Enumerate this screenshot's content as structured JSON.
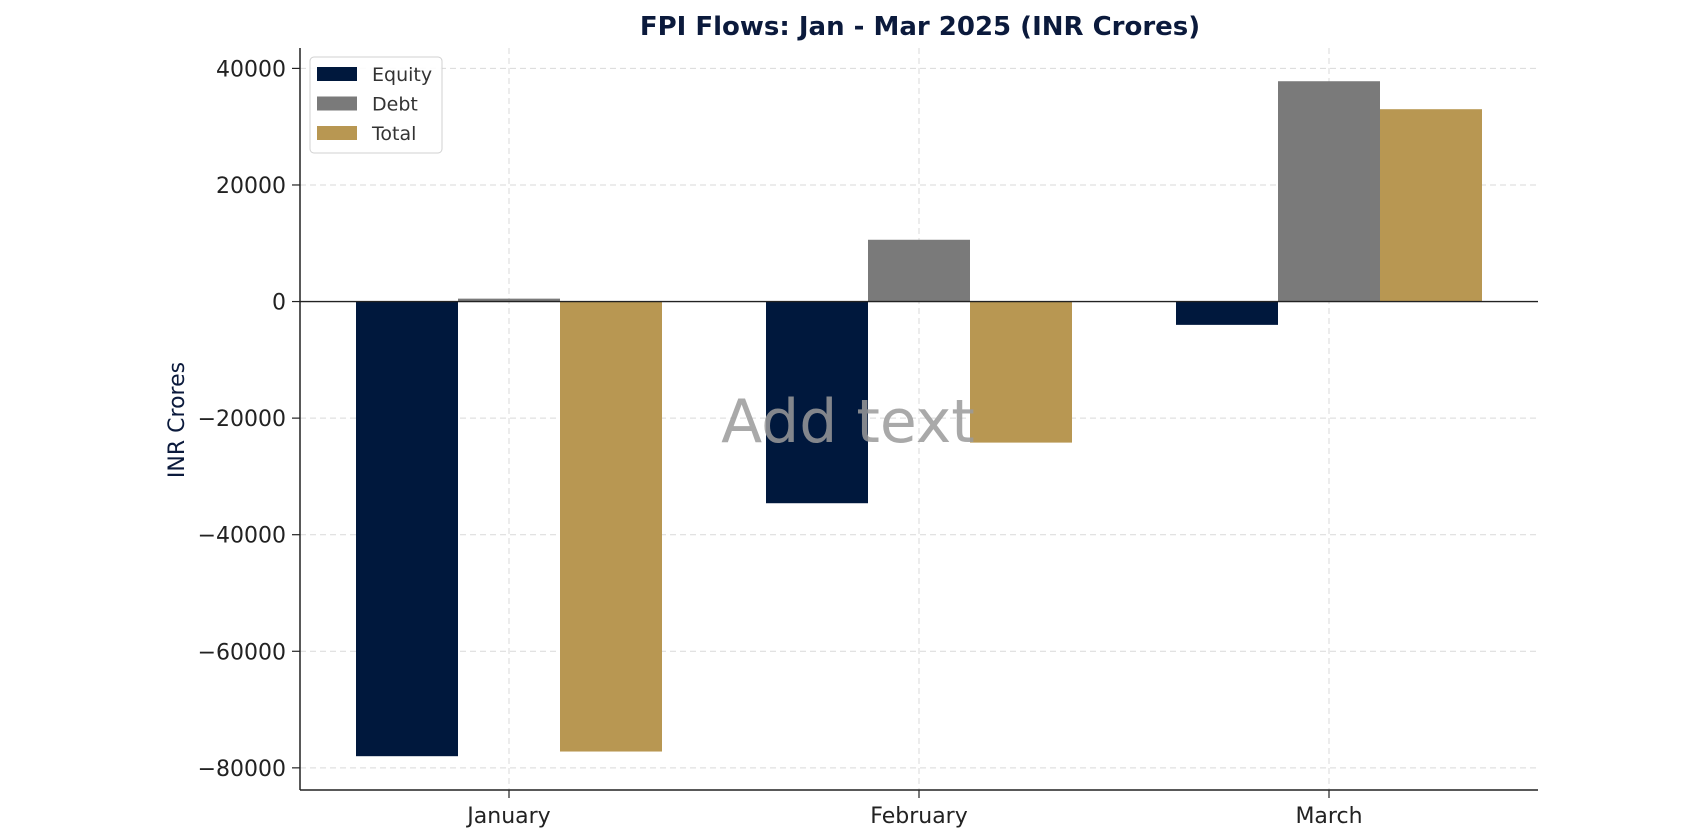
{
  "chart_data": {
    "type": "bar",
    "title": "FPI Flows: Jan - Mar 2025 (INR Crores)",
    "xlabel": "",
    "ylabel": "INR Crores",
    "categories": [
      "January",
      "February",
      "March"
    ],
    "series": [
      {
        "name": "Equity",
        "values": [
          -78000,
          -34600,
          -4000
        ],
        "color": "#00183d"
      },
      {
        "name": "Debt",
        "values": [
          500,
          10600,
          37800
        ],
        "color": "#7a7a7a"
      },
      {
        "name": "Total",
        "values": [
          -77200,
          -24200,
          33000
        ],
        "color": "#b89752"
      }
    ],
    "ylim": [
      -83800,
      43500
    ],
    "yticks": [
      40000,
      20000,
      0,
      -20000,
      -40000,
      -60000,
      -80000
    ],
    "ytick_labels": [
      "40000",
      "20000",
      "0",
      "−20000",
      "−40000",
      "−60000",
      "−80000"
    ],
    "grid": true,
    "legend": "top-left",
    "overlay_text": "Add text"
  }
}
